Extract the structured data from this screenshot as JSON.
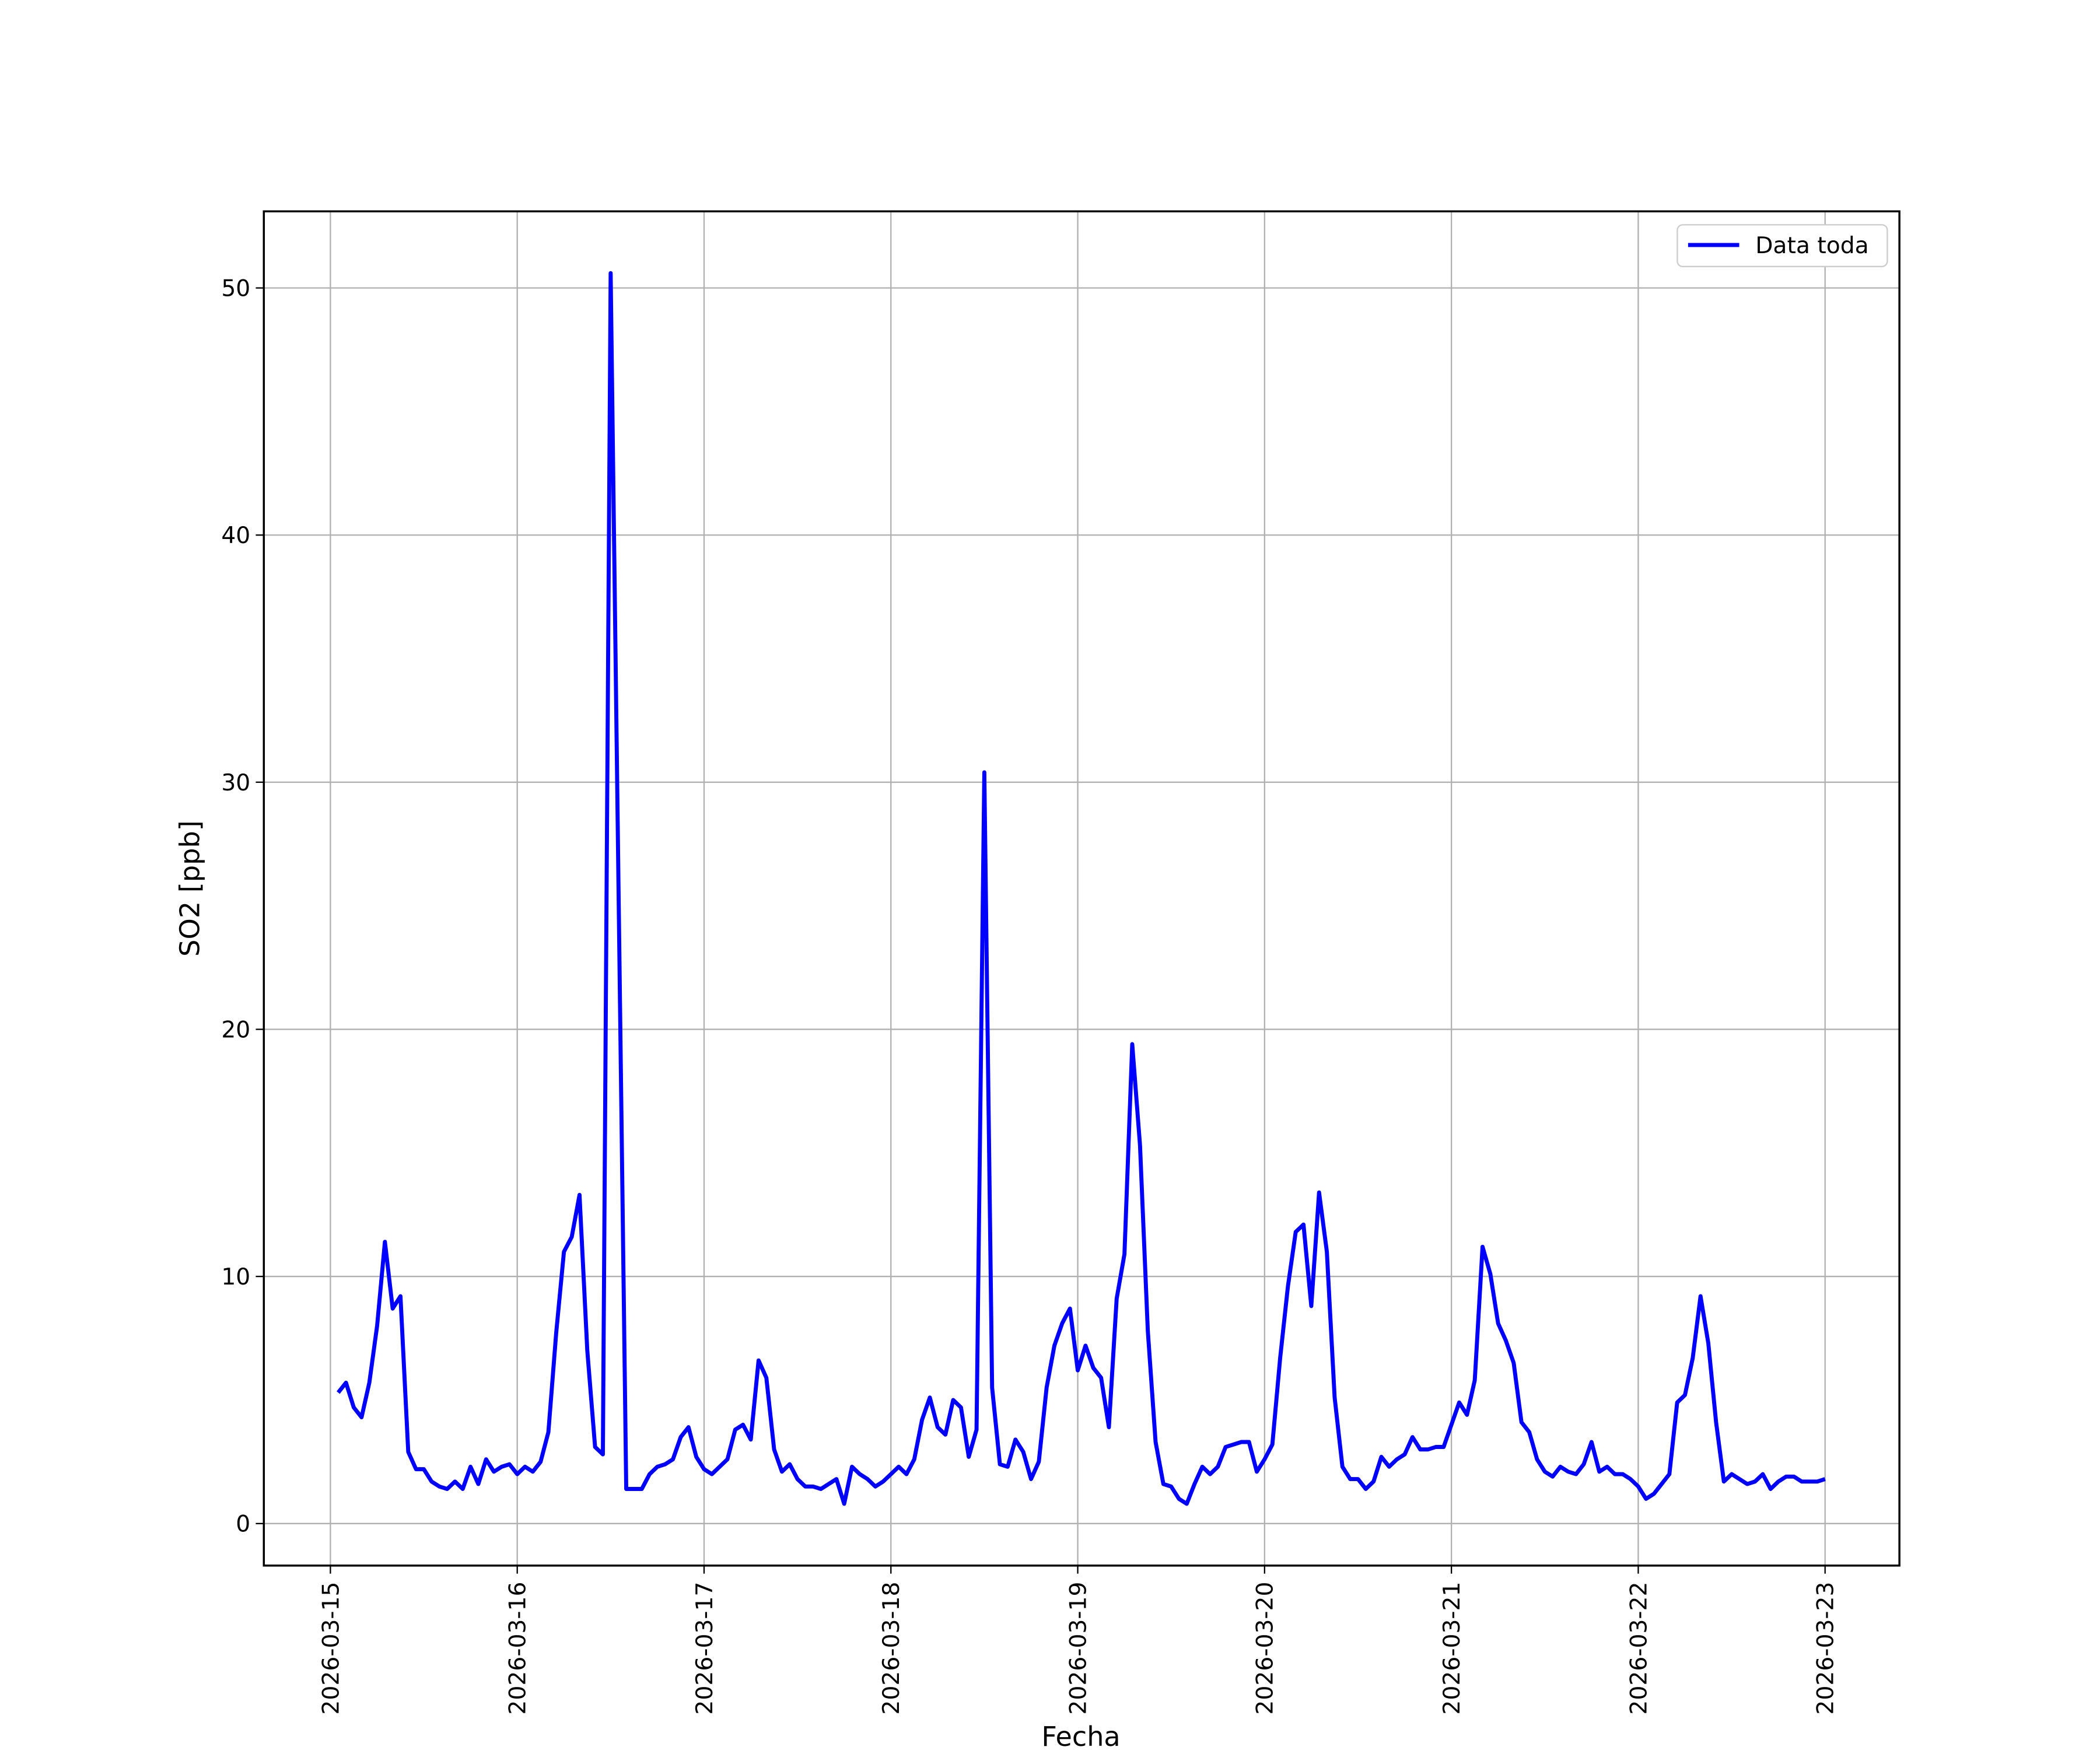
{
  "chart_data": {
    "type": "line",
    "xlabel": "Fecha",
    "ylabel": "SO2 [ppb]",
    "x": [
      "2026-03-15 01:00",
      "2026-03-15 02:00",
      "2026-03-15 03:00",
      "2026-03-15 04:00",
      "2026-03-15 05:00",
      "2026-03-15 06:00",
      "2026-03-15 07:00",
      "2026-03-15 08:00",
      "2026-03-15 09:00",
      "2026-03-15 10:00",
      "2026-03-15 11:00",
      "2026-03-15 12:00",
      "2026-03-15 13:00",
      "2026-03-15 14:00",
      "2026-03-15 15:00",
      "2026-03-15 16:00",
      "2026-03-15 17:00",
      "2026-03-15 18:00",
      "2026-03-15 19:00",
      "2026-03-15 20:00",
      "2026-03-15 21:00",
      "2026-03-15 22:00",
      "2026-03-15 23:00",
      "2026-03-16 00:00",
      "2026-03-16 01:00",
      "2026-03-16 02:00",
      "2026-03-16 03:00",
      "2026-03-16 04:00",
      "2026-03-16 05:00",
      "2026-03-16 06:00",
      "2026-03-16 07:00",
      "2026-03-16 08:00",
      "2026-03-16 09:00",
      "2026-03-16 10:00",
      "2026-03-16 11:00",
      "2026-03-16 12:00",
      "2026-03-16 13:00",
      "2026-03-16 14:00",
      "2026-03-16 15:00",
      "2026-03-16 16:00",
      "2026-03-16 17:00",
      "2026-03-16 18:00",
      "2026-03-16 19:00",
      "2026-03-16 20:00",
      "2026-03-16 21:00",
      "2026-03-16 22:00",
      "2026-03-16 23:00",
      "2026-03-17 00:00",
      "2026-03-17 01:00",
      "2026-03-17 02:00",
      "2026-03-17 03:00",
      "2026-03-17 04:00",
      "2026-03-17 05:00",
      "2026-03-17 06:00",
      "2026-03-17 07:00",
      "2026-03-17 08:00",
      "2026-03-17 09:00",
      "2026-03-17 10:00",
      "2026-03-17 11:00",
      "2026-03-17 12:00",
      "2026-03-17 13:00",
      "2026-03-17 14:00",
      "2026-03-17 15:00",
      "2026-03-17 16:00",
      "2026-03-17 17:00",
      "2026-03-17 18:00",
      "2026-03-17 19:00",
      "2026-03-17 20:00",
      "2026-03-17 21:00",
      "2026-03-17 22:00",
      "2026-03-17 23:00",
      "2026-03-18 00:00",
      "2026-03-18 01:00",
      "2026-03-18 02:00",
      "2026-03-18 03:00",
      "2026-03-18 04:00",
      "2026-03-18 05:00",
      "2026-03-18 06:00",
      "2026-03-18 07:00",
      "2026-03-18 08:00",
      "2026-03-18 09:00",
      "2026-03-18 10:00",
      "2026-03-18 11:00",
      "2026-03-18 12:00",
      "2026-03-18 13:00",
      "2026-03-18 14:00",
      "2026-03-18 15:00",
      "2026-03-18 16:00",
      "2026-03-18 17:00",
      "2026-03-18 18:00",
      "2026-03-18 19:00",
      "2026-03-18 20:00",
      "2026-03-18 21:00",
      "2026-03-18 22:00",
      "2026-03-18 23:00",
      "2026-03-19 00:00",
      "2026-03-19 01:00",
      "2026-03-19 02:00",
      "2026-03-19 03:00",
      "2026-03-19 04:00",
      "2026-03-19 05:00",
      "2026-03-19 06:00",
      "2026-03-19 07:00",
      "2026-03-19 08:00",
      "2026-03-19 09:00",
      "2026-03-19 10:00",
      "2026-03-19 11:00",
      "2026-03-19 12:00",
      "2026-03-19 13:00",
      "2026-03-19 14:00",
      "2026-03-19 15:00",
      "2026-03-19 16:00",
      "2026-03-19 17:00",
      "2026-03-19 18:00",
      "2026-03-19 19:00",
      "2026-03-19 20:00",
      "2026-03-19 21:00",
      "2026-03-19 22:00",
      "2026-03-19 23:00",
      "2026-03-20 00:00",
      "2026-03-20 01:00",
      "2026-03-20 02:00",
      "2026-03-20 03:00",
      "2026-03-20 04:00",
      "2026-03-20 05:00",
      "2026-03-20 06:00",
      "2026-03-20 07:00",
      "2026-03-20 08:00",
      "2026-03-20 09:00",
      "2026-03-20 10:00",
      "2026-03-20 11:00",
      "2026-03-20 12:00",
      "2026-03-20 13:00",
      "2026-03-20 14:00",
      "2026-03-20 15:00",
      "2026-03-20 16:00",
      "2026-03-20 17:00",
      "2026-03-20 18:00",
      "2026-03-20 19:00",
      "2026-03-20 20:00",
      "2026-03-20 21:00",
      "2026-03-20 22:00",
      "2026-03-20 23:00",
      "2026-03-21 00:00",
      "2026-03-21 01:00",
      "2026-03-21 02:00",
      "2026-03-21 03:00",
      "2026-03-21 04:00",
      "2026-03-21 05:00",
      "2026-03-21 06:00",
      "2026-03-21 07:00",
      "2026-03-21 08:00",
      "2026-03-21 09:00",
      "2026-03-21 10:00",
      "2026-03-21 11:00",
      "2026-03-21 12:00",
      "2026-03-21 13:00",
      "2026-03-21 14:00",
      "2026-03-21 15:00",
      "2026-03-21 16:00",
      "2026-03-21 17:00",
      "2026-03-21 18:00",
      "2026-03-21 19:00",
      "2026-03-21 20:00",
      "2026-03-21 21:00",
      "2026-03-21 22:00",
      "2026-03-21 23:00",
      "2026-03-22 00:00",
      "2026-03-22 01:00",
      "2026-03-22 02:00",
      "2026-03-22 03:00",
      "2026-03-22 04:00",
      "2026-03-22 05:00",
      "2026-03-22 06:00",
      "2026-03-22 07:00",
      "2026-03-22 08:00",
      "2026-03-22 09:00",
      "2026-03-22 10:00",
      "2026-03-22 11:00",
      "2026-03-22 12:00",
      "2026-03-22 13:00",
      "2026-03-22 14:00",
      "2026-03-22 15:00",
      "2026-03-22 16:00",
      "2026-03-22 17:00",
      "2026-03-22 18:00",
      "2026-03-22 19:00",
      "2026-03-22 20:00",
      "2026-03-22 21:00",
      "2026-03-22 22:00",
      "2026-03-22 23:00",
      "2026-03-23 00:00"
    ],
    "series": [
      {
        "name": "Data toda",
        "color": "#0000ff",
        "values": [
          5.3,
          5.7,
          4.7,
          4.3,
          5.7,
          8.0,
          11.4,
          8.7,
          9.2,
          2.9,
          2.2,
          2.2,
          1.7,
          1.5,
          1.4,
          1.7,
          1.4,
          2.3,
          1.6,
          2.6,
          2.1,
          2.3,
          2.4,
          2.0,
          2.3,
          2.1,
          2.5,
          3.7,
          7.7,
          11.0,
          11.6,
          13.3,
          7.0,
          3.1,
          2.8,
          50.6,
          26,
          1.4,
          1.4,
          1.4,
          2.0,
          2.3,
          2.4,
          2.6,
          3.5,
          3.9,
          2.7,
          2.2,
          2.0,
          2.3,
          2.6,
          3.8,
          4.0,
          3.4,
          6.6,
          5.9,
          3.0,
          2.1,
          2.4,
          1.8,
          1.5,
          1.5,
          1.4,
          1.6,
          1.8,
          0.8,
          2.3,
          2.0,
          1.8,
          1.5,
          1.7,
          2.0,
          2.3,
          2.0,
          2.6,
          4.2,
          5.1,
          3.9,
          3.6,
          5.0,
          4.7,
          2.7,
          3.8,
          30.4,
          5.5,
          2.4,
          2.3,
          3.4,
          2.9,
          1.8,
          2.5,
          5.5,
          7.2,
          8.1,
          8.7,
          6.2,
          7.2,
          6.3,
          5.9,
          3.9,
          9.1,
          10.9,
          19.4,
          15.3,
          7.8,
          3.3,
          1.6,
          1.5,
          1.0,
          0.8,
          1.6,
          2.3,
          2.0,
          2.3,
          3.1,
          3.2,
          3.3,
          3.3,
          2.1,
          2.6,
          3.2,
          6.7,
          9.6,
          11.8,
          12.1,
          8.8,
          13.4,
          11.0,
          5.1,
          2.3,
          1.8,
          1.8,
          1.4,
          1.7,
          2.7,
          2.3,
          2.6,
          2.8,
          3.5,
          3.0,
          3.0,
          3.1,
          3.1,
          4.0,
          4.9,
          4.4,
          5.8,
          11.2,
          10.1,
          8.1,
          7.4,
          6.5,
          4.1,
          3.7,
          2.6,
          2.1,
          1.9,
          2.3,
          2.1,
          2.0,
          2.4,
          3.3,
          2.1,
          2.3,
          2.0,
          2.0,
          1.8,
          1.5,
          1.0,
          1.2,
          1.6,
          2.0,
          4.9,
          5.2,
          6.7,
          9.2,
          7.3,
          4.1,
          1.7,
          2.0,
          1.8,
          1.6,
          1.7,
          2.0,
          1.4,
          1.7,
          1.9,
          1.9,
          1.7,
          1.7,
          1.7,
          1.8
        ]
      }
    ],
    "xlim": [
      "2026-03-14 15:27",
      "2026-03-23 09:33"
    ],
    "xticks": [
      "2026-03-15",
      "2026-03-16",
      "2026-03-17",
      "2026-03-18",
      "2026-03-19",
      "2026-03-20",
      "2026-03-21",
      "2026-03-22",
      "2026-03-23"
    ],
    "ylim": [
      -1.7,
      53.1
    ],
    "yticks": [
      0,
      10,
      20,
      30,
      40,
      50
    ],
    "grid": true,
    "legend": "upper right"
  }
}
